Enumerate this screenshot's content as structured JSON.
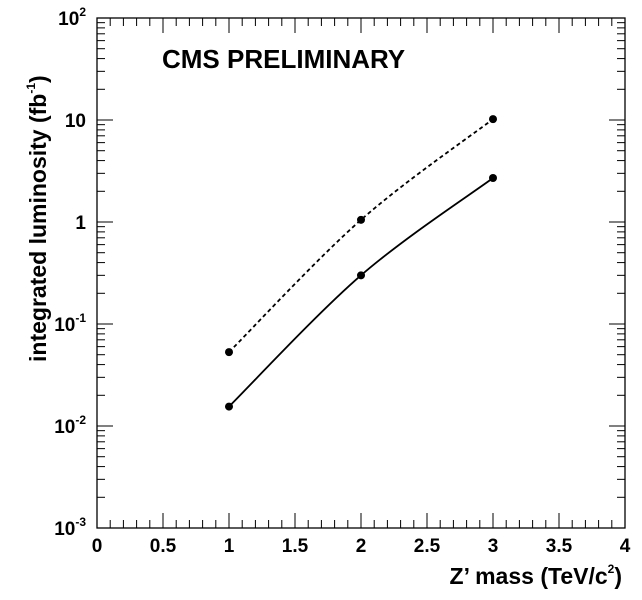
{
  "chart_data": {
    "type": "line",
    "title": "CMS PRELIMINARY",
    "xlabel": {
      "main": "Z’ mass (TeV/c",
      "sup": "2",
      "tail": ")"
    },
    "ylabel": {
      "main": "integrated luminosity (fb",
      "sup": "-1",
      "tail": ")"
    },
    "xlim": [
      0,
      4
    ],
    "ylim": [
      0.001,
      100
    ],
    "yscale": "log",
    "grid": false,
    "x_ticks": [
      {
        "value": 0,
        "label": "0"
      },
      {
        "value": 0.5,
        "label": "0.5"
      },
      {
        "value": 1,
        "label": "1"
      },
      {
        "value": 1.5,
        "label": "1.5"
      },
      {
        "value": 2,
        "label": "2"
      },
      {
        "value": 2.5,
        "label": "2.5"
      },
      {
        "value": 3,
        "label": "3"
      },
      {
        "value": 3.5,
        "label": "3.5"
      },
      {
        "value": 4,
        "label": "4"
      }
    ],
    "y_ticks": [
      {
        "value": 0.001,
        "base": "10",
        "exp": "-3"
      },
      {
        "value": 0.01,
        "base": "10",
        "exp": "-2"
      },
      {
        "value": 0.1,
        "base": "10",
        "exp": "-1"
      },
      {
        "value": 1,
        "base": "1",
        "exp": ""
      },
      {
        "value": 10,
        "base": "10",
        "exp": ""
      },
      {
        "value": 100,
        "base": "10",
        "exp": "2"
      }
    ],
    "series": [
      {
        "style": "dashed",
        "color": "#000000",
        "x": [
          1,
          2,
          3
        ],
        "y": [
          0.053,
          1.05,
          10.2
        ]
      },
      {
        "style": "solid",
        "color": "#000000",
        "x": [
          1,
          2,
          3
        ],
        "y": [
          0.0155,
          0.3,
          2.7
        ]
      }
    ]
  }
}
